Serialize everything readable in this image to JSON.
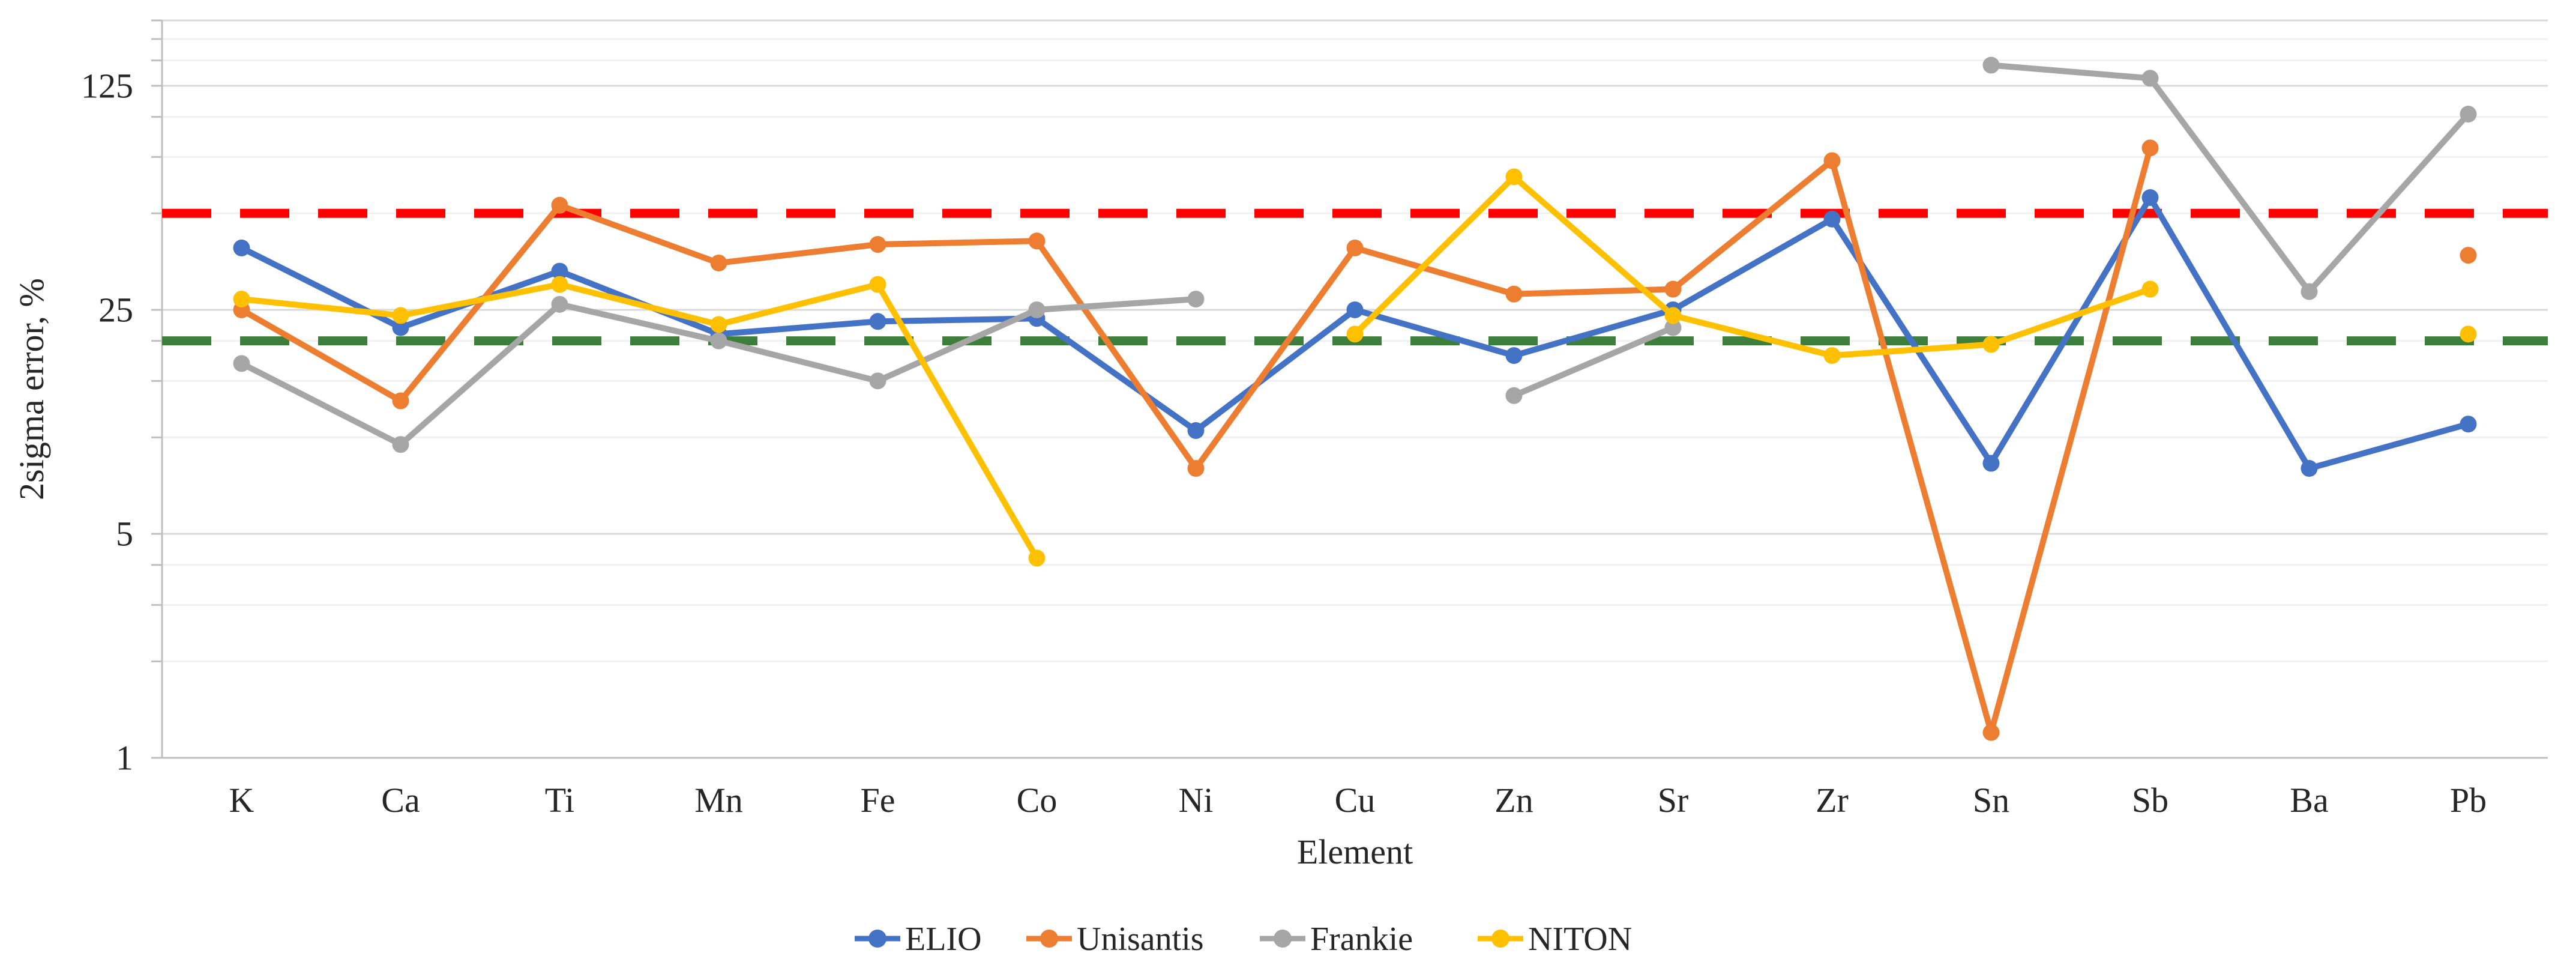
{
  "chart_data": {
    "type": "line",
    "title": "",
    "xlabel": "Element",
    "ylabel": "2sigma error, %",
    "x_categories": [
      "K",
      "Ca",
      "Ti",
      "Mn",
      "Fe",
      "Co",
      "Ni",
      "Cu",
      "Zn",
      "Sr",
      "Zr",
      "Sn",
      "Sb",
      "Ba",
      "Pb"
    ],
    "y_scale": "log-base-5",
    "y_log_base": 5,
    "ylim": [
      1,
      200
    ],
    "y_ticks": [
      125,
      25,
      5,
      1
    ],
    "y_minor_gridlines": [
      2,
      3,
      4,
      10,
      15,
      20,
      50,
      75,
      100,
      150,
      175
    ],
    "y_major_gridlines": [
      5,
      25,
      125
    ],
    "grid": "horizontal-only",
    "legend_position": "bottom-center",
    "legend_marker": "line-with-circle",
    "series": [
      {
        "name": "ELIO",
        "color": "#4472C4",
        "values": [
          39,
          22,
          33,
          21,
          23,
          23.5,
          10.5,
          25,
          18,
          25,
          48,
          8.3,
          56,
          8,
          11
        ]
      },
      {
        "name": "Unisantis",
        "color": "#ED7D31",
        "values": [
          25,
          13,
          53,
          35,
          40,
          41,
          8,
          39,
          28,
          29,
          73,
          1.2,
          80,
          null,
          37
        ]
      },
      {
        "name": "Frankie",
        "color": "#A6A6A6",
        "values": [
          17,
          9.5,
          26,
          20,
          15,
          25,
          27,
          null,
          13.5,
          22,
          null,
          145,
          132,
          28.5,
          102
        ]
      },
      {
        "name": "NITON",
        "color": "#FFC000",
        "values": [
          27,
          24,
          30,
          22.5,
          30,
          4.2,
          null,
          21,
          65,
          24,
          18,
          19.5,
          29,
          null,
          21
        ]
      }
    ],
    "reference_lines": [
      {
        "name": "upper-threshold",
        "value": 50,
        "color": "#FF0000",
        "style": "dashed"
      },
      {
        "name": "lower-threshold",
        "value": 20,
        "color": "#3E7E3C",
        "style": "dashed"
      }
    ],
    "colors": {
      "axis_line": "#BFBFBF",
      "major_grid": "#D9D9D9",
      "minor_grid": "#F0F0F0",
      "text": "#262626"
    }
  }
}
